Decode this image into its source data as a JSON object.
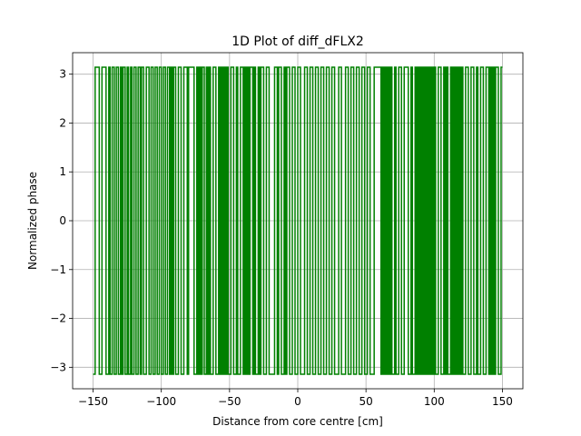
{
  "chart_data": {
    "type": "line",
    "title": "1D Plot of diff_dFLX2",
    "xlabel": "Distance from core centre [cm]",
    "ylabel": "Normalized phase",
    "xlim": [
      -165,
      165
    ],
    "ylim": [
      -3.44,
      3.44
    ],
    "xticks": [
      -150,
      -100,
      -50,
      0,
      50,
      100,
      150
    ],
    "xtick_labels": [
      "−150",
      "−100",
      "−50",
      "0",
      "50",
      "100",
      "150"
    ],
    "yticks": [
      -3,
      -2,
      -1,
      0,
      1,
      2,
      3
    ],
    "ytick_labels": [
      "−3",
      "−2",
      "−1",
      "0",
      "1",
      "2",
      "3"
    ],
    "grid": true,
    "legend": "none",
    "step_levels": [
      -3.1416,
      3.1416
    ],
    "series": [
      {
        "color": "#008000",
        "x_start": -150,
        "x_end": 150,
        "start_level": "low",
        "transitions_x": [
          -148.5,
          -145.5,
          -143.5,
          -140.5,
          -138.5,
          -137.5,
          -136,
          -134.5,
          -133,
          -131.5,
          -130,
          -129,
          -128,
          -126.5,
          -125,
          -124,
          -122.5,
          -121.5,
          -120,
          -118.5,
          -117,
          -115.5,
          -114.5,
          -113,
          -111,
          -109,
          -107.5,
          -106,
          -104.5,
          -103,
          -101.5,
          -100,
          -98.5,
          -97,
          -95.5,
          -94,
          -93,
          -92,
          -91,
          -89.5,
          -87.5,
          -85.5,
          -83.5,
          -81,
          -80,
          -76,
          -74,
          -73,
          -72,
          -71,
          -70,
          -68.5,
          -67,
          -66,
          -65,
          -64,
          -62,
          -60,
          -58,
          -57,
          -56,
          -55,
          -54,
          -53,
          -52,
          -51,
          -49,
          -47,
          -45,
          -44,
          -42,
          -40,
          -39,
          -38,
          -37,
          -36,
          -35,
          -33,
          -32,
          -31,
          -29,
          -28,
          -27,
          -25,
          -23,
          -21,
          -17,
          -15,
          -14,
          -12,
          -10,
          -9,
          -8,
          -6,
          -4,
          -2,
          0,
          2,
          5,
          7,
          9,
          11,
          13,
          15,
          17,
          19,
          21,
          23,
          25,
          27,
          30,
          32,
          35,
          37,
          39,
          41,
          43,
          45,
          47,
          49,
          51,
          53,
          56,
          61,
          62,
          63,
          64,
          65,
          66,
          67,
          68,
          69,
          71,
          72,
          74,
          76,
          78,
          81,
          83,
          84,
          86,
          87,
          88,
          89,
          90,
          91,
          92,
          93,
          94,
          95,
          96,
          97,
          98,
          99,
          100,
          101,
          103,
          105,
          107,
          108,
          109,
          110,
          112,
          113,
          114,
          115,
          116,
          117,
          118,
          119,
          120,
          121,
          123,
          125,
          127,
          129,
          131,
          132,
          134,
          136,
          138,
          140,
          141,
          142,
          143,
          144,
          145,
          147,
          149
        ]
      }
    ]
  }
}
